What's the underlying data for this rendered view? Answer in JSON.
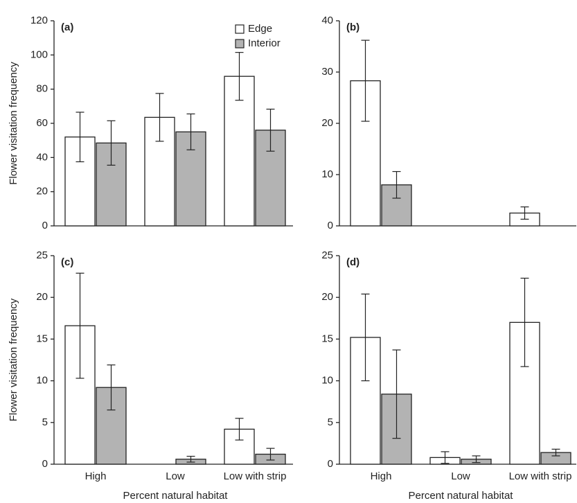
{
  "chart_data": [
    {
      "type": "bar",
      "label": "(a)",
      "ylabel": "Flower  visitation frequency",
      "ylim": [
        0,
        120
      ],
      "yticks": [
        0,
        20,
        40,
        60,
        80,
        100,
        120
      ],
      "series": [
        {
          "name": "Edge",
          "color": "#ffffff",
          "values": [
            52,
            63.5,
            87.5
          ],
          "errors": [
            14.5,
            14,
            14
          ]
        },
        {
          "name": "Interior",
          "color": "#b3b3b3",
          "values": [
            48.5,
            55,
            56
          ],
          "errors": [
            13,
            10.5,
            12.3
          ]
        }
      ]
    },
    {
      "type": "bar",
      "label": "(b)",
      "ylim": [
        0,
        40
      ],
      "yticks": [
        0,
        10,
        20,
        30,
        40
      ],
      "series": [
        {
          "color": "#ffffff",
          "values": [
            28.3,
            0,
            2.5
          ],
          "errors": [
            7.9,
            null,
            1.2
          ]
        },
        {
          "color": "#b3b3b3",
          "values": [
            8,
            0,
            0
          ],
          "errors": [
            2.6,
            null,
            null
          ]
        }
      ]
    },
    {
      "type": "bar",
      "label": "(c)",
      "ylabel": "Flower  visitation frequency",
      "xlabel": "Percent natural habitat",
      "categories": [
        "High",
        "Low",
        "Low with strip"
      ],
      "ylim": [
        0,
        25
      ],
      "yticks": [
        0,
        5,
        10,
        15,
        20,
        25
      ],
      "series": [
        {
          "color": "#ffffff",
          "values": [
            16.6,
            0,
            4.2
          ],
          "errors": [
            6.3,
            null,
            1.3
          ]
        },
        {
          "color": "#b3b3b3",
          "values": [
            9.2,
            0.6,
            1.2
          ],
          "errors": [
            2.7,
            0.35,
            0.7
          ]
        }
      ]
    },
    {
      "type": "bar",
      "label": "(d)",
      "xlabel": "Percent natural habitat",
      "categories": [
        "High",
        "Low",
        "Low with strip"
      ],
      "ylim": [
        0,
        25
      ],
      "yticks": [
        0,
        5,
        10,
        15,
        20,
        25
      ],
      "series": [
        {
          "color": "#ffffff",
          "values": [
            15.2,
            0.8,
            17
          ],
          "errors": [
            5.2,
            0.7,
            5.3
          ]
        },
        {
          "color": "#b3b3b3",
          "values": [
            8.4,
            0.6,
            1.4
          ],
          "errors": [
            5.3,
            0.4,
            0.4
          ]
        }
      ]
    }
  ]
}
